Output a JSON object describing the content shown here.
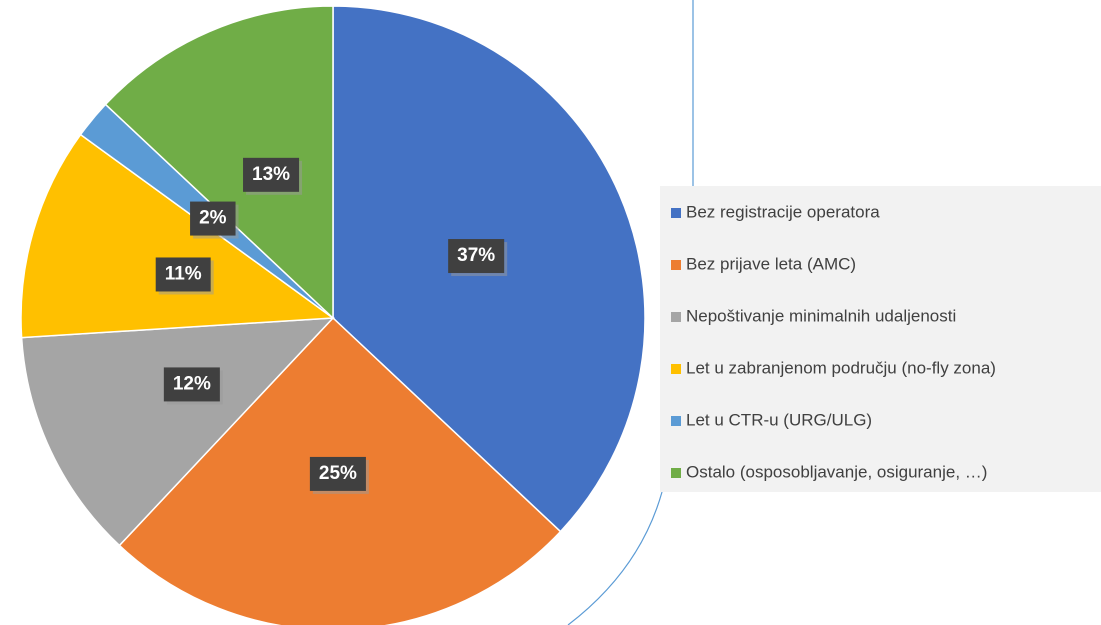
{
  "chart_data": {
    "type": "pie",
    "categories": [
      "Bez registracije operatora",
      "Bez prijave leta (AMC)",
      "Nepoštivanje minimalnih udaljenosti",
      "Let u zabranjenom području (no-fly zona)",
      "Let u CTR-u (URG/ULG)",
      "Ostalo (osposobljavanje, osiguranje, …)"
    ],
    "values": [
      37,
      25,
      12,
      11,
      2,
      13
    ],
    "value_labels": [
      "37%",
      "25%",
      "12%",
      "11%",
      "2%",
      "13%"
    ],
    "colors": [
      "#4472c4",
      "#ed7d31",
      "#a5a5a5",
      "#ffc000",
      "#5b9bd5",
      "#70ad47"
    ],
    "legend": "right"
  }
}
